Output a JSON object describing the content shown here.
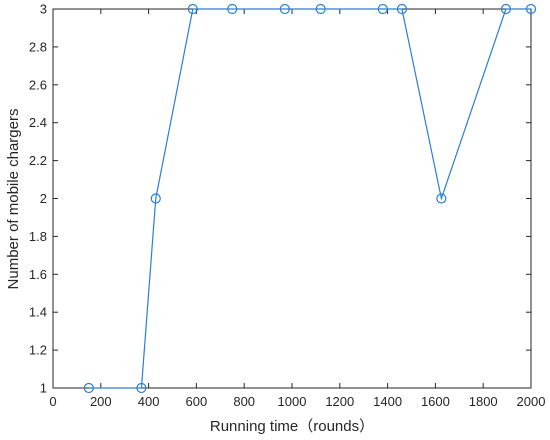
{
  "chart_data": {
    "type": "line",
    "title": "",
    "xlabel": "Running time（rounds）",
    "ylabel": "Number of mobile chargers",
    "xlim": [
      0,
      2000
    ],
    "ylim": [
      1,
      3
    ],
    "xticks": [
      0,
      200,
      400,
      600,
      800,
      1000,
      1200,
      1400,
      1600,
      1800,
      2000
    ],
    "yticks": [
      1,
      1.2,
      1.4,
      1.6,
      1.8,
      2,
      2.2,
      2.4,
      2.6,
      2.8,
      3
    ],
    "grid": false,
    "marker": "circle",
    "color": "#2a7fd4",
    "series": [
      {
        "x": [
          150,
          370,
          430,
          585,
          750,
          970,
          1120,
          1380,
          1460,
          1625,
          1895,
          2000
        ],
        "y": [
          1,
          1,
          2,
          3,
          3,
          3,
          3,
          3,
          3,
          2,
          3,
          3
        ]
      }
    ]
  }
}
